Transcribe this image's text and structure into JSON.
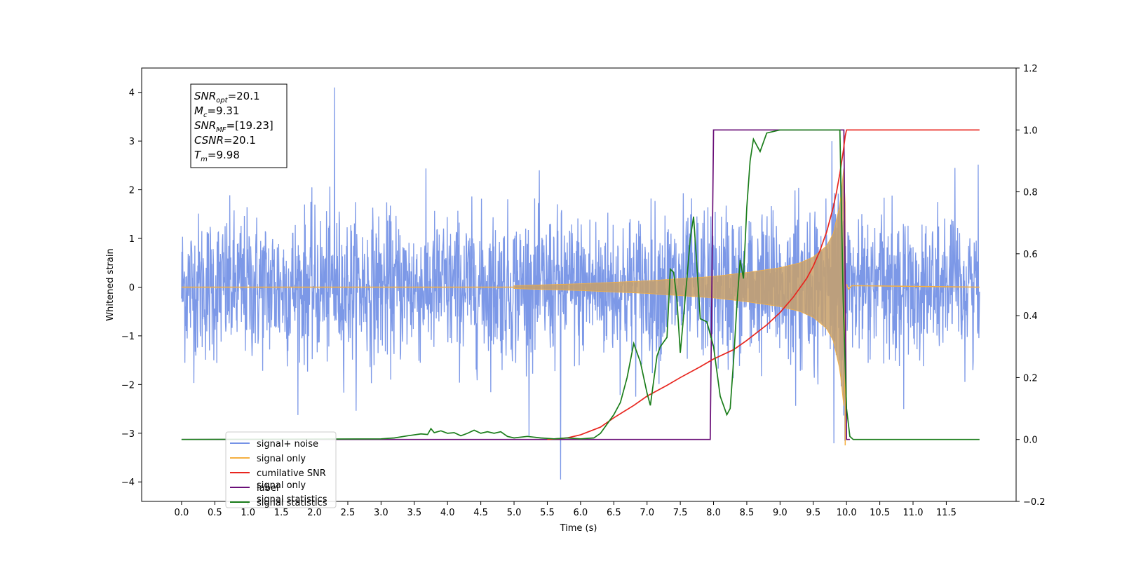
{
  "chart_data": {
    "type": "line",
    "title": "",
    "xlabel": "Time (s)",
    "ylabel": "Whitened strain",
    "y2label": "",
    "xlim": [
      -0.6,
      12.55
    ],
    "ylim": [
      -4.4,
      4.5
    ],
    "y2lim": [
      -0.2,
      1.2
    ],
    "x_ticks": [
      0.0,
      0.5,
      1.0,
      1.5,
      2.0,
      2.5,
      3.0,
      3.5,
      4.0,
      4.5,
      5.0,
      5.5,
      6.0,
      6.5,
      7.0,
      7.5,
      8.0,
      8.5,
      9.0,
      9.5,
      10.0,
      10.5,
      11.0,
      11.5
    ],
    "x_tick_labels": [
      "0.0",
      "0.5",
      "1.0",
      "1.5",
      "2.0",
      "2.5",
      "3.0",
      "3.5",
      "4.0",
      "4.5",
      "5.0",
      "5.5",
      "6.0",
      "6.5",
      "7.0",
      "7.5",
      "8.0",
      "8.5",
      "9.0",
      "9.5",
      "10.0",
      "10.5",
      "11.0",
      "11.5"
    ],
    "y_ticks": [
      -4,
      -3,
      -2,
      -1,
      0,
      1,
      2,
      3,
      4
    ],
    "y_tick_labels": [
      "−4",
      "−3",
      "−2",
      "−1",
      "0",
      "1",
      "2",
      "3",
      "4"
    ],
    "y2_ticks": [
      -0.2,
      0.0,
      0.2,
      0.4,
      0.6,
      0.8,
      1.0,
      1.2
    ],
    "y2_tick_labels": [
      "−0.2",
      "0.0",
      "0.2",
      "0.4",
      "0.6",
      "0.8",
      "1.0",
      "1.2"
    ],
    "grid": false,
    "legend_position": "lower-left",
    "series": [
      {
        "name": "signal+ noise",
        "axis": "left",
        "color": "#7592e6",
        "kind": "noise_band",
        "x_range": [
          0.0,
          12.0
        ],
        "spread_sigma": 0.75,
        "peak_max": 4.1,
        "peak_min": -3.95,
        "signal": "signal only"
      },
      {
        "name": "signal only",
        "axis": "left",
        "color": "#f5b041",
        "kind": "chirp",
        "x_range": [
          0.0,
          12.0
        ],
        "merger_time": 9.98,
        "envelope": {
          "x": [
            0.0,
            5.0,
            6.0,
            7.0,
            8.0,
            8.5,
            9.0,
            9.3,
            9.5,
            9.7,
            9.8,
            9.9,
            9.97,
            10.0
          ],
          "y": [
            0.01,
            0.03,
            0.07,
            0.13,
            0.22,
            0.3,
            0.4,
            0.5,
            0.62,
            0.85,
            1.1,
            1.7,
            2.6,
            0.0
          ]
        },
        "min_value": -3.25
      },
      {
        "name": "cumilative SNR",
        "axis": "right",
        "color": "#e8261f",
        "kind": "line",
        "x": [
          5.5,
          5.8,
          6.0,
          6.3,
          6.5,
          6.8,
          7.0,
          7.3,
          7.5,
          7.8,
          8.0,
          8.3,
          8.5,
          8.8,
          9.0,
          9.2,
          9.4,
          9.5,
          9.6,
          9.7,
          9.8,
          9.85,
          9.9,
          9.95,
          9.98,
          10.0,
          10.3,
          10.6,
          11.0,
          11.5,
          12.0
        ],
        "y": [
          0.0,
          0.005,
          0.015,
          0.04,
          0.07,
          0.11,
          0.14,
          0.175,
          0.2,
          0.235,
          0.26,
          0.29,
          0.32,
          0.37,
          0.41,
          0.46,
          0.52,
          0.56,
          0.61,
          0.67,
          0.75,
          0.8,
          0.86,
          0.93,
          0.98,
          1.0,
          1.0,
          1.0,
          1.0,
          1.0,
          1.0
        ]
      },
      {
        "name": "label",
        "axis": "right",
        "color": "#6a0f78",
        "kind": "line",
        "x": [
          0.0,
          7.95,
          8.0,
          9.96,
          10.0,
          10.05
        ],
        "y": [
          0.0,
          0.0,
          1.0,
          1.0,
          0.0,
          0.0
        ]
      },
      {
        "name": "signal statistics",
        "axis": "right",
        "color": "#1a7d1a",
        "kind": "line",
        "x": [
          0.0,
          3.0,
          3.2,
          3.4,
          3.6,
          3.7,
          3.75,
          3.8,
          3.9,
          4.0,
          4.1,
          4.2,
          4.3,
          4.4,
          4.5,
          4.6,
          4.7,
          4.8,
          4.9,
          5.0,
          5.2,
          5.4,
          5.6,
          5.8,
          6.0,
          6.2,
          6.3,
          6.4,
          6.5,
          6.6,
          6.7,
          6.8,
          6.9,
          7.0,
          7.05,
          7.1,
          7.15,
          7.2,
          7.3,
          7.35,
          7.4,
          7.45,
          7.5,
          7.55,
          7.6,
          7.65,
          7.7,
          7.75,
          7.8,
          7.9,
          8.0,
          8.1,
          8.2,
          8.25,
          8.3,
          8.35,
          8.4,
          8.45,
          8.5,
          8.55,
          8.6,
          8.7,
          8.8,
          9.0,
          9.2,
          9.4,
          9.6,
          9.8,
          9.9,
          9.95,
          10.0,
          10.05,
          10.1,
          10.2,
          10.5,
          11.0,
          11.5,
          12.0
        ],
        "y": [
          0.0,
          0.002,
          0.005,
          0.012,
          0.018,
          0.016,
          0.035,
          0.022,
          0.028,
          0.02,
          0.022,
          0.012,
          0.02,
          0.03,
          0.02,
          0.025,
          0.02,
          0.025,
          0.01,
          0.005,
          0.01,
          0.005,
          0.002,
          0.005,
          0.002,
          0.005,
          0.02,
          0.05,
          0.08,
          0.12,
          0.2,
          0.31,
          0.25,
          0.15,
          0.11,
          0.19,
          0.27,
          0.3,
          0.33,
          0.55,
          0.54,
          0.45,
          0.28,
          0.4,
          0.52,
          0.65,
          0.72,
          0.56,
          0.39,
          0.38,
          0.3,
          0.14,
          0.08,
          0.1,
          0.25,
          0.43,
          0.58,
          0.52,
          0.75,
          0.9,
          0.97,
          0.93,
          0.99,
          1.0,
          1.0,
          1.0,
          1.0,
          1.0,
          1.0,
          0.45,
          0.1,
          0.01,
          0.0,
          0.0,
          0.0,
          0.0,
          0.0,
          0.0
        ]
      }
    ],
    "legend_entries": [
      {
        "label": "signal+ noise",
        "color": "#7592e6"
      },
      {
        "label": "signal only",
        "color": "#f5b041"
      },
      {
        "label": "cumilative SNR",
        "color": "#e8261f"
      },
      {
        "label": "label",
        "color": "#6a0f78"
      },
      {
        "label": "signal statistics",
        "color": "#1a7d1a"
      }
    ],
    "legend_ghost_text": [
      "signal only",
      "signal statistics"
    ],
    "annotation": {
      "lines": [
        {
          "base": "SNR",
          "sub": "opt",
          "value": "=20.1"
        },
        {
          "base": "M",
          "sub": "c",
          "value": "=9.31"
        },
        {
          "base": "SNR",
          "sub": "MF",
          "value": "=[19.23]"
        },
        {
          "base": "CSNR",
          "sub": "",
          "value": "=20.1"
        },
        {
          "base": "T",
          "sub": "m",
          "value": "=9.98"
        }
      ]
    }
  }
}
